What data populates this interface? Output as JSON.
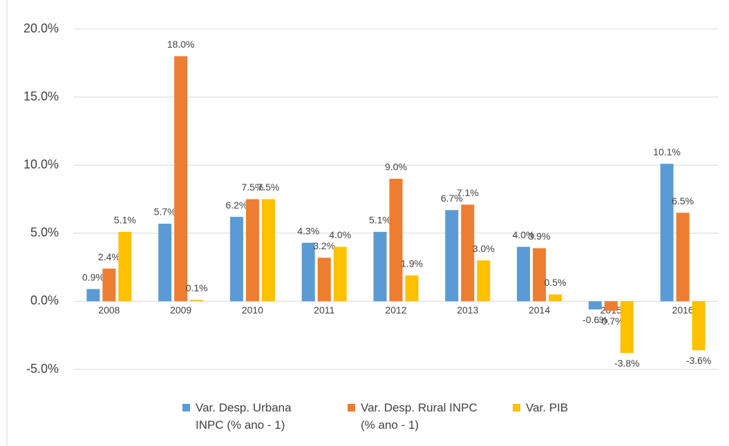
{
  "chart_data": {
    "type": "bar",
    "categories": [
      "2008",
      "2009",
      "2010",
      "2011",
      "2012",
      "2013",
      "2014",
      "2015",
      "2016"
    ],
    "series": [
      {
        "name": "Var. Desp. Urbana INPC (% ano - 1)",
        "color": "#5b9bd5",
        "values": [
          0.9,
          5.7,
          6.2,
          4.3,
          5.1,
          6.7,
          4.0,
          -0.6,
          10.1
        ],
        "value_labels": [
          "0.9%",
          "5.7%",
          "6.2%",
          "4.3%",
          "5.1%",
          "6.7%",
          "4.0%",
          "-0.6%",
          "10.1%"
        ]
      },
      {
        "name": "Var. Desp. Rural INPC (% ano - 1)",
        "color": "#ed7d31",
        "values": [
          2.4,
          18.0,
          7.5,
          3.2,
          9.0,
          7.1,
          3.9,
          -0.7,
          6.5
        ],
        "value_labels": [
          "2.4%",
          "18.0%",
          "7.5%",
          "3.2%",
          "9.0%",
          "7.1%",
          "3.9%",
          "-0.7%",
          "6.5%"
        ]
      },
      {
        "name": "Var. PIB",
        "color": "#ffc000",
        "values": [
          5.1,
          0.1,
          7.5,
          4.0,
          1.9,
          3.0,
          0.5,
          -3.8,
          -3.6
        ],
        "value_labels": [
          "5.1%",
          "0.1%",
          "7.5%",
          "4.0%",
          "1.9%",
          "3.0%",
          "0.5%",
          "-3.8%",
          "-3.6%"
        ]
      }
    ],
    "ylim": [
      -5,
      20
    ],
    "yticks": [
      {
        "value": -5,
        "label": "-5.0%"
      },
      {
        "value": 0,
        "label": "0.0%"
      },
      {
        "value": 5,
        "label": "5.0%"
      },
      {
        "value": 10,
        "label": "10.0%"
      },
      {
        "value": 15,
        "label": "15.0%"
      },
      {
        "value": 20,
        "label": "20.0%"
      }
    ],
    "grid": true,
    "legend": "bottom"
  }
}
